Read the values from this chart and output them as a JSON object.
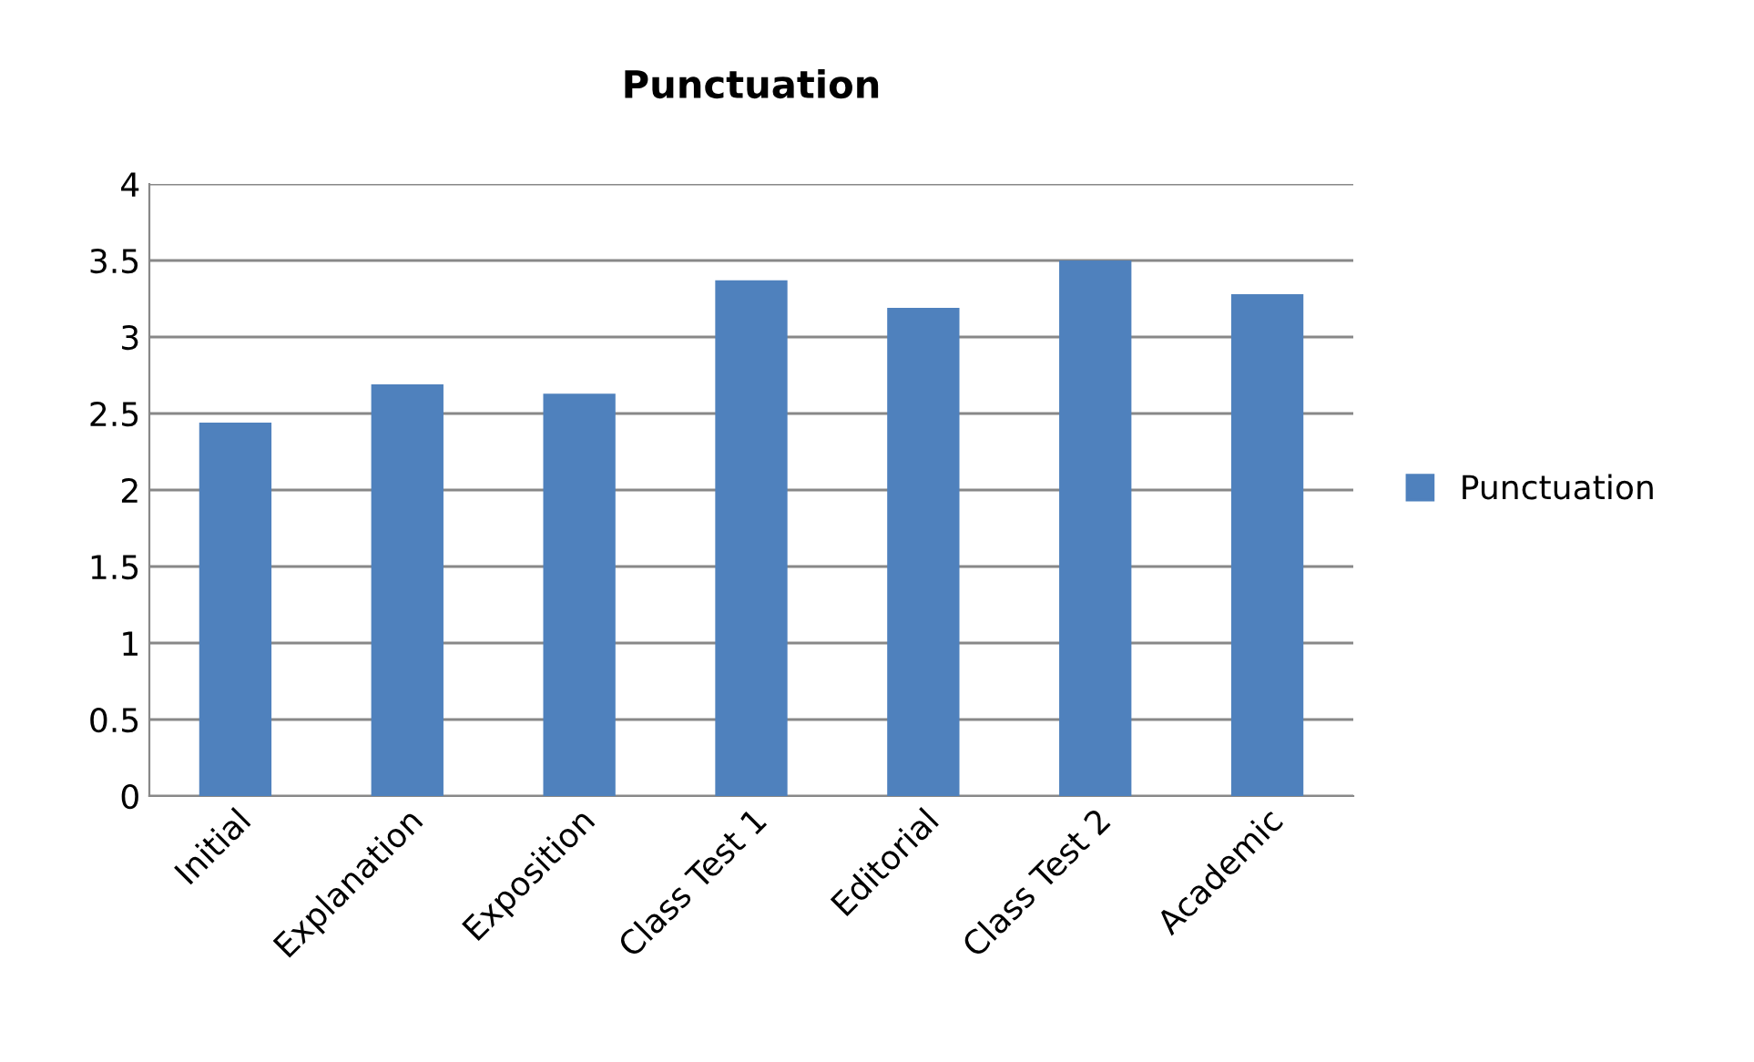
{
  "chart_data": {
    "type": "bar",
    "title": "Punctuation",
    "categories": [
      "Initial",
      "Explanation",
      "Exposition",
      "Class Test 1",
      "Editorial",
      "Class Test 2",
      "Academic"
    ],
    "series": [
      {
        "name": "Punctuation",
        "color": "#4f81bd",
        "values": [
          2.44,
          2.69,
          2.63,
          3.37,
          3.19,
          3.5,
          3.28
        ]
      }
    ],
    "ylim": [
      0,
      4
    ],
    "yticks": [
      0,
      0.5,
      1,
      1.5,
      2,
      2.5,
      3,
      3.5,
      4
    ],
    "grid": "y",
    "legend": "right"
  }
}
